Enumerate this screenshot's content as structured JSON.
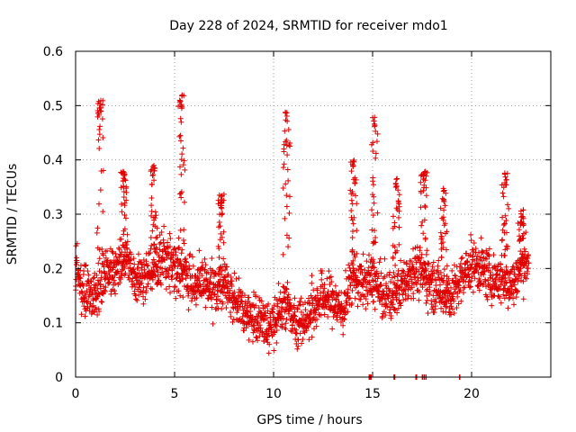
{
  "chart_data": {
    "type": "scatter",
    "title": "Day 228 of 2024, SRMTID for receiver mdo1",
    "xlabel": "GPS time / hours",
    "ylabel": "SRMTID / TECUs",
    "xlim": [
      0,
      24
    ],
    "ylim": [
      0,
      0.6
    ],
    "xticks": [
      "0",
      "5",
      "10",
      "15",
      "20"
    ],
    "yticks": [
      "0",
      "0.1",
      "0.2",
      "0.3",
      "0.4",
      "0.5",
      "0.6"
    ],
    "grid": true,
    "marker": "+",
    "color": "#e00000",
    "series": [
      {
        "name": "SRMTID",
        "trend": [
          [
            0.0,
            0.2
          ],
          [
            0.5,
            0.16
          ],
          [
            1.0,
            0.15
          ],
          [
            1.5,
            0.19
          ],
          [
            2.0,
            0.2
          ],
          [
            2.5,
            0.22
          ],
          [
            3.0,
            0.18
          ],
          [
            3.5,
            0.18
          ],
          [
            4.0,
            0.2
          ],
          [
            4.5,
            0.22
          ],
          [
            5.0,
            0.21
          ],
          [
            5.5,
            0.19
          ],
          [
            6.0,
            0.17
          ],
          [
            6.5,
            0.17
          ],
          [
            7.0,
            0.16
          ],
          [
            7.5,
            0.17
          ],
          [
            8.0,
            0.15
          ],
          [
            8.5,
            0.12
          ],
          [
            9.0,
            0.11
          ],
          [
            9.5,
            0.1
          ],
          [
            10.0,
            0.09
          ],
          [
            10.5,
            0.14
          ],
          [
            11.0,
            0.11
          ],
          [
            11.5,
            0.1
          ],
          [
            12.0,
            0.13
          ],
          [
            12.5,
            0.15
          ],
          [
            13.0,
            0.14
          ],
          [
            13.5,
            0.12
          ],
          [
            14.0,
            0.19
          ],
          [
            14.5,
            0.17
          ],
          [
            15.0,
            0.18
          ],
          [
            15.5,
            0.15
          ],
          [
            16.0,
            0.15
          ],
          [
            16.5,
            0.17
          ],
          [
            17.0,
            0.2
          ],
          [
            17.5,
            0.19
          ],
          [
            18.0,
            0.17
          ],
          [
            18.5,
            0.16
          ],
          [
            19.0,
            0.15
          ],
          [
            19.5,
            0.18
          ],
          [
            20.0,
            0.21
          ],
          [
            20.5,
            0.2
          ],
          [
            21.0,
            0.18
          ],
          [
            21.5,
            0.18
          ],
          [
            22.0,
            0.17
          ],
          [
            22.5,
            0.2
          ],
          [
            22.9,
            0.22
          ]
        ],
        "spikes": [
          {
            "x": 1.25,
            "ymax": 0.51
          },
          {
            "x": 2.45,
            "ymax": 0.38
          },
          {
            "x": 3.95,
            "ymax": 0.39
          },
          {
            "x": 5.35,
            "ymax": 0.52
          },
          {
            "x": 7.35,
            "ymax": 0.34
          },
          {
            "x": 10.65,
            "ymax": 0.49
          },
          {
            "x": 14.05,
            "ymax": 0.4
          },
          {
            "x": 15.1,
            "ymax": 0.48
          },
          {
            "x": 16.2,
            "ymax": 0.37
          },
          {
            "x": 17.6,
            "ymax": 0.38
          },
          {
            "x": 18.6,
            "ymax": 0.35
          },
          {
            "x": 21.7,
            "ymax": 0.38
          },
          {
            "x": 22.5,
            "ymax": 0.31
          }
        ],
        "zero_points": [
          14.85,
          14.9,
          16.1,
          17.2,
          17.5,
          17.6,
          17.7,
          19.4
        ]
      }
    ]
  }
}
